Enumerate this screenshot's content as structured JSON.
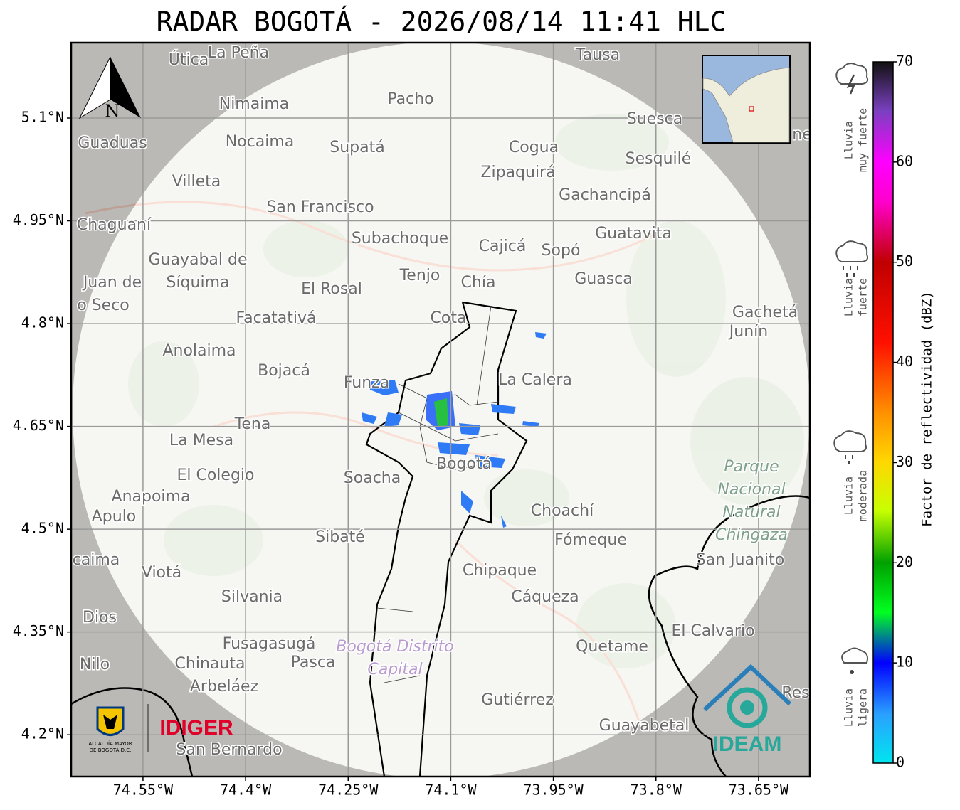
{
  "title": "RADAR BOGOTÁ - 2026/08/14 11:41 HLC",
  "map": {
    "xlim": [
      -74.655,
      -73.575
    ],
    "ylim": [
      4.139,
      5.21
    ],
    "xticks": [
      {
        "value": -74.55,
        "label": "74.55°W"
      },
      {
        "value": -74.4,
        "label": "74.4°W"
      },
      {
        "value": -74.25,
        "label": "74.25°W"
      },
      {
        "value": -74.1,
        "label": "74.1°W"
      },
      {
        "value": -73.95,
        "label": "73.95°W"
      },
      {
        "value": -73.8,
        "label": "73.8°W"
      },
      {
        "value": -73.65,
        "label": "73.65°W"
      }
    ],
    "yticks": [
      {
        "value": 4.2,
        "label": "4.2°N"
      },
      {
        "value": 4.35,
        "label": "4.35°N"
      },
      {
        "value": 4.5,
        "label": "4.5°N"
      },
      {
        "value": 4.65,
        "label": "4.65°N"
      },
      {
        "value": 4.8,
        "label": "4.8°N"
      },
      {
        "value": 4.95,
        "label": "4.95°N"
      },
      {
        "value": 5.1,
        "label": "5.1°N"
      }
    ],
    "grid": true
  },
  "places": [
    "Útica",
    "La Peña",
    "Tausa",
    "Pacho",
    "Nimaima",
    "Guaduas",
    "Nocaima",
    "Supatá",
    "Cogua",
    "Suesca",
    "Zipaquirá",
    "Sesquilé",
    "Villeta",
    "Gachancipá",
    "San Francisco",
    "Chaguaní",
    "Subachoque",
    "Cajicá",
    "Sopó",
    "Guatavita",
    "Guayabal de",
    "Síquima",
    "Juan de",
    "o Seco",
    "Tenjo",
    "Chía",
    "El Rosal",
    "Guasca",
    "Facatativá",
    "Cota",
    "Gachetá",
    "Junín",
    "Anolaima",
    "Bojacá",
    "Funza",
    "La Calera",
    "Tena",
    "La Mesa",
    "Bogotá",
    "El Colegio",
    "Soacha",
    "Anapoima",
    "Apulo",
    "Choachí",
    "Fómeque",
    "Sibaté",
    "San Juanito",
    "caima",
    "Viotá",
    "Chipaque",
    "Silvania",
    "Cáqueza",
    "Dios",
    "El Calvario",
    "Fusagasugá",
    "Quetame",
    "Chinauta",
    "Pasca",
    "Nilo",
    "Arbeláez",
    "Gutiérrez",
    "Res",
    "Guayabetal",
    "San Bernardo",
    "ne"
  ],
  "special_places": {
    "park": [
      "Parque",
      "Nacional",
      "Natural",
      "Chingaza"
    ],
    "district": [
      "Bogotá Distrito",
      "Capital"
    ]
  },
  "north": "N",
  "colorbar": {
    "label": "Factor de reflectividad (dBZ)",
    "lim": [
      0,
      70
    ],
    "ticks": [
      0,
      10,
      20,
      30,
      40,
      50,
      60,
      70
    ]
  },
  "legend": [
    [
      "Lluvia",
      "muy fuerte"
    ],
    [
      "Lluvia",
      "fuerte"
    ],
    [
      "Lluvia",
      "moderada"
    ],
    [
      "Lluvia",
      "ligera"
    ]
  ],
  "logos": {
    "alcaldia": [
      "ALCALDÍA MAYOR",
      "DE BOGOTÁ D.C."
    ],
    "idiger": "IDIGER",
    "ideam": "IDEAM"
  }
}
